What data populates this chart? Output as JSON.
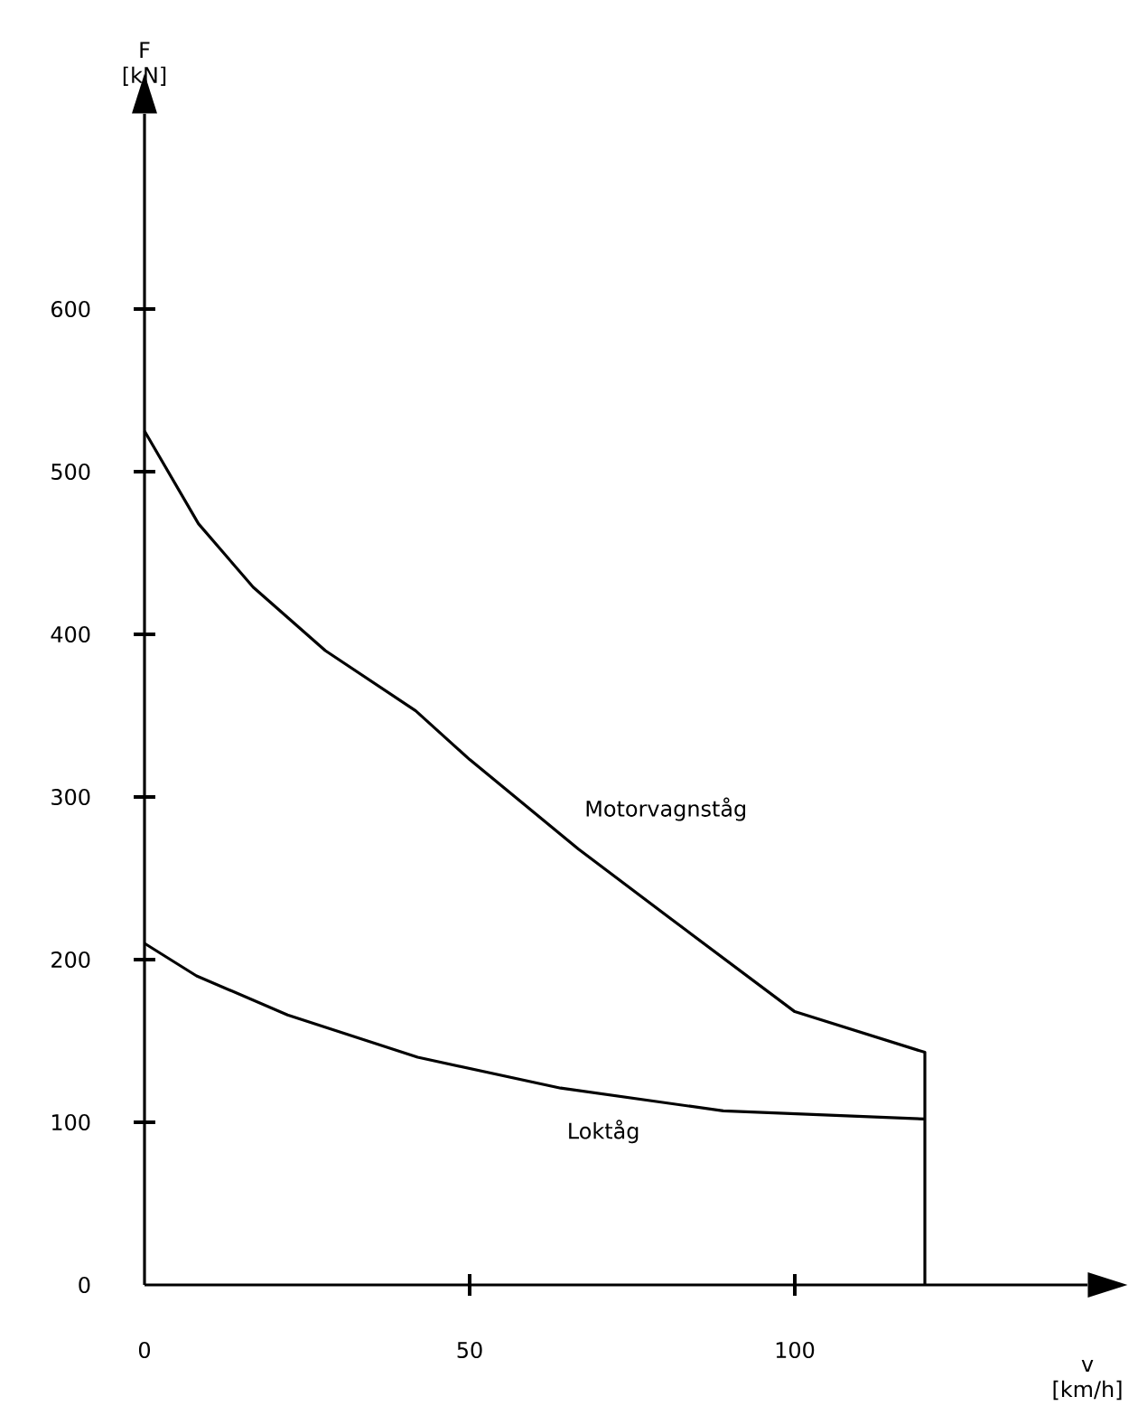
{
  "chart_data": {
    "type": "line",
    "xlabel": "v [km/h]",
    "ylabel": "F [kN]",
    "xlim": [
      0,
      145
    ],
    "ylim": [
      0,
      720
    ],
    "xticks": [
      0,
      50,
      100
    ],
    "yticks": [
      0,
      100,
      200,
      300,
      400,
      500,
      600
    ],
    "grid": false,
    "legend": false,
    "marker": "none",
    "line_style": "solid",
    "series": [
      {
        "name": "Motorvagnståg",
        "color": "#000000",
        "x": [
          0,
          8.3,
          16.7,
          27.8,
          41.7,
          50,
          66.7,
          83.3,
          100,
          120,
          120
        ],
        "values": [
          525,
          468,
          429,
          390,
          353,
          323,
          268,
          218,
          168,
          143,
          0
        ]
      },
      {
        "name": "Loktåg",
        "color": "#000000",
        "x": [
          0,
          8,
          22,
          42,
          64,
          89,
          120
        ],
        "values": [
          210,
          190,
          166,
          140,
          121,
          107,
          102
        ]
      }
    ]
  }
}
